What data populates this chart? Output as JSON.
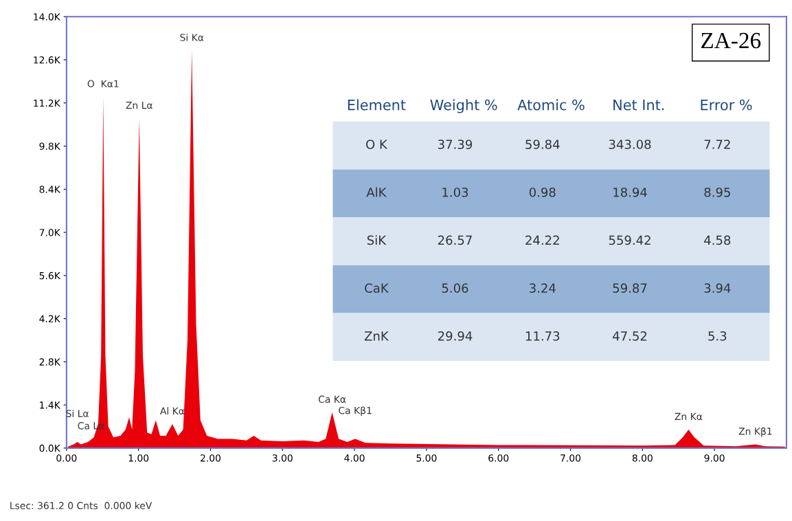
{
  "chart_data": [
    {
      "type": "area",
      "title": "ZA-26",
      "x": [
        0.02,
        0.1,
        0.15,
        0.2,
        0.3,
        0.38,
        0.44,
        0.48,
        0.51,
        0.54,
        0.58,
        0.65,
        0.75,
        0.82,
        0.87,
        0.91,
        0.95,
        1.01,
        1.06,
        1.12,
        1.18,
        1.24,
        1.3,
        1.38,
        1.47,
        1.55,
        1.62,
        1.68,
        1.74,
        1.8,
        1.86,
        1.95,
        2.1,
        2.3,
        2.5,
        2.6,
        2.7,
        3.0,
        3.3,
        3.5,
        3.6,
        3.69,
        3.78,
        3.9,
        4.01,
        4.15,
        4.5,
        5.0,
        6.0,
        7.0,
        8.0,
        8.45,
        8.56,
        8.64,
        8.72,
        8.85,
        9.3,
        9.57,
        9.7,
        9.98
      ],
      "series": [
        {
          "color": "#e8000b",
          "values": [
            50,
            120,
            200,
            120,
            200,
            350,
            800,
            3000,
            11400,
            3000,
            700,
            350,
            400,
            600,
            1000,
            600,
            2500,
            10700,
            3000,
            500,
            450,
            900,
            400,
            400,
            780,
            400,
            600,
            3500,
            12900,
            4000,
            900,
            400,
            300,
            300,
            250,
            400,
            250,
            220,
            250,
            200,
            300,
            1160,
            300,
            200,
            300,
            170,
            150,
            130,
            100,
            90,
            80,
            100,
            350,
            600,
            350,
            80,
            60,
            120,
            60,
            50
          ]
        }
      ],
      "xlim": [
        0,
        10
      ],
      "ylim": [
        0,
        14000
      ],
      "xticks": [
        {
          "value": 0,
          "label": "0.00"
        },
        {
          "value": 1,
          "label": "1.00"
        },
        {
          "value": 2,
          "label": "2.00"
        },
        {
          "value": 3,
          "label": "3.00"
        },
        {
          "value": 4,
          "label": "4.00"
        },
        {
          "value": 5,
          "label": "5.00"
        },
        {
          "value": 6,
          "label": "6.00"
        },
        {
          "value": 7,
          "label": "7.00"
        },
        {
          "value": 8,
          "label": "8.00"
        },
        {
          "value": 9,
          "label": "9.00"
        }
      ],
      "yticks": [
        {
          "value": 0,
          "label": "0.0K"
        },
        {
          "value": 1400,
          "label": "1.4K"
        },
        {
          "value": 2800,
          "label": "2.8K"
        },
        {
          "value": 4200,
          "label": "4.2K"
        },
        {
          "value": 5600,
          "label": "5.6K"
        },
        {
          "value": 7000,
          "label": "7.0K"
        },
        {
          "value": 8400,
          "label": "8.4K"
        },
        {
          "value": 9800,
          "label": "9.8K"
        },
        {
          "value": 11200,
          "label": "11.2K"
        },
        {
          "value": 12600,
          "label": "12.6K"
        },
        {
          "value": 14000,
          "label": "14.0K"
        }
      ],
      "grid": false,
      "legend": false,
      "annotations": [
        {
          "text": "O  Kα1",
          "x": 0.51,
          "y": 11400
        },
        {
          "text": "Zn Lα",
          "x": 1.01,
          "y": 10700
        },
        {
          "text": "Si Kα",
          "x": 1.74,
          "y": 12900
        },
        {
          "text": "Ca Lα",
          "x": 0.34,
          "y": 300
        },
        {
          "text": "Si Lα",
          "x": 0.15,
          "y": 200
        },
        {
          "text": "Al Kα",
          "x": 1.47,
          "y": 780
        },
        {
          "text": "Ca Kα",
          "x": 3.69,
          "y": 1160
        },
        {
          "text": "Ca Kβ1",
          "x": 4.01,
          "y": 300
        },
        {
          "text": "Zn Kα",
          "x": 8.64,
          "y": 600
        },
        {
          "text": "Zn Kβ1",
          "x": 9.57,
          "y": 120
        },
        "Lsec: 361.2 0 Cnts  0.000 keV"
      ]
    },
    {
      "type": "other",
      "categories": [
        "Element",
        "Weight %",
        "Atomic %",
        "Net Int.",
        "Error %"
      ],
      "y_categories": [
        "O K",
        "AlK",
        "SiK",
        "CaK",
        "ZnK"
      ],
      "cell_labels": [
        [
          "37.39",
          "59.84",
          "343.08",
          "7.72"
        ],
        [
          "1.03",
          "0.98",
          "18.94",
          "8.95"
        ],
        [
          "26.57",
          "24.22",
          "559.42",
          "4.58"
        ],
        [
          "5.06",
          "3.24",
          "59.87",
          "3.94"
        ],
        [
          "29.94",
          "11.73",
          "47.52",
          "5.3"
        ]
      ],
      "colors": [
        "#dce6f2",
        "#95b3d7"
      ]
    }
  ]
}
